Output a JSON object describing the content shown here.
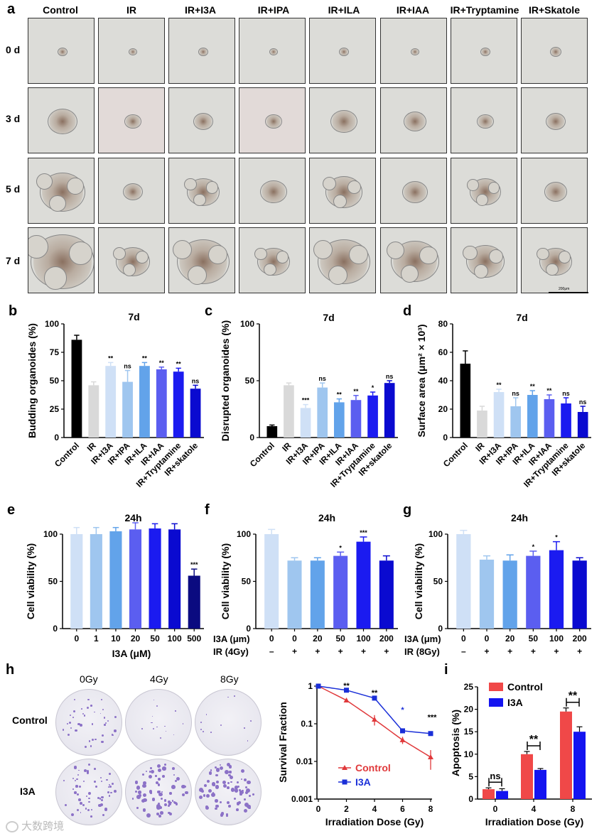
{
  "panel_letters": {
    "a": "a",
    "b": "b",
    "c": "c",
    "d": "d",
    "e": "e",
    "f": "f",
    "g": "g",
    "h": "h",
    "i": "i"
  },
  "panel_a": {
    "columns": [
      "Control",
      "IR",
      "IR+I3A",
      "IR+IPA",
      "IR+ILA",
      "IR+IAA",
      "IR+Tryptamine",
      "IR+Skatole"
    ],
    "rows": [
      "0 d",
      "3 d",
      "5 d",
      "7 d"
    ],
    "scale_bar": "200μm"
  },
  "panel_b": {
    "ylabel": "Budding organoides (%)"
  },
  "panel_c": {
    "ylabel": "Disrupted organoides (%)"
  },
  "panel_d": {
    "ylabel": "Surface area (μm² × 10³)"
  },
  "panel_e": {
    "ylabel": "Cell viability (%)"
  },
  "panel_f": {
    "ylabel": "Cell viability (%)",
    "row1_label": "I3A (μm)",
    "row2_label": "IR (4Gy)"
  },
  "panel_g": {
    "ylabel": "Cell viability (%)",
    "row1_label": "I3A (μm)",
    "row2_label": "IR (8Gy)"
  },
  "panel_h": {
    "doses": [
      "0Gy",
      "4Gy",
      "8Gy"
    ],
    "rows": [
      "Control",
      "I3A"
    ]
  },
  "watermark": "大数跨境",
  "chart_data": [
    {
      "id": "b",
      "type": "bar",
      "title": "7d",
      "ylabel": "Budding organoides (%)",
      "ylim": [
        0,
        100
      ],
      "yticks": [
        0,
        25,
        50,
        75,
        100
      ],
      "categories": [
        "Control",
        "IR",
        "IR+I3A",
        "IR+IPA",
        "IR+ILA",
        "IR+IAA",
        "IR+Tryptamine",
        "IR+skatole"
      ],
      "values": [
        86,
        46,
        63,
        49,
        63,
        60,
        58,
        43
      ],
      "errors": [
        4,
        3,
        3,
        10,
        3,
        2,
        3,
        3
      ],
      "sig": [
        "",
        "",
        "**",
        "ns",
        "**",
        "**",
        "**",
        "ns"
      ],
      "colors": [
        "#000000",
        "#d9d9d9",
        "#cfe0f6",
        "#9fc6ef",
        "#62a3ea",
        "#5b5ef0",
        "#1b1bf0",
        "#0a0ad0"
      ]
    },
    {
      "id": "c",
      "type": "bar",
      "title": "7d",
      "ylabel": "Disrupted organoides (%)",
      "ylim": [
        0,
        100
      ],
      "yticks": [
        0,
        50,
        100
      ],
      "categories": [
        "Control",
        "IR",
        "IR+I3A",
        "IR+IPA",
        "IR+ILA",
        "IR+IAA",
        "IR+Tryptamine",
        "IR+skatole"
      ],
      "values": [
        10,
        46,
        26,
        44,
        31,
        33,
        37,
        48
      ],
      "errors": [
        1,
        2,
        3,
        4,
        3,
        4,
        3,
        2
      ],
      "sig": [
        "",
        "",
        "***",
        "ns",
        "**",
        "**",
        "*",
        "ns"
      ],
      "colors": [
        "#000000",
        "#d9d9d9",
        "#cfe0f6",
        "#9fc6ef",
        "#62a3ea",
        "#5b5ef0",
        "#1b1bf0",
        "#0a0ad0"
      ]
    },
    {
      "id": "d",
      "type": "bar",
      "title": "7d",
      "ylabel": "Surface area (μm² × 10³)",
      "ylim": [
        0,
        80
      ],
      "yticks": [
        0,
        20,
        40,
        60,
        80
      ],
      "categories": [
        "Control",
        "IR",
        "IR+I3A",
        "IR+IPA",
        "IR+ILA",
        "IR+IAA",
        "IR+Tryptamine",
        "IR+skatole"
      ],
      "values": [
        52,
        19,
        32,
        22,
        30,
        27,
        24,
        18
      ],
      "errors": [
        9,
        3,
        2,
        6,
        3,
        3,
        4,
        4
      ],
      "sig": [
        "",
        "",
        "**",
        "ns",
        "**",
        "**",
        "ns",
        "ns"
      ],
      "colors": [
        "#000000",
        "#d9d9d9",
        "#cfe0f6",
        "#9fc6ef",
        "#62a3ea",
        "#5b5ef0",
        "#1b1bf0",
        "#0a0ad0"
      ]
    },
    {
      "id": "e",
      "type": "bar",
      "title": "24h",
      "ylabel": "Cell viability (%)",
      "xlabel": "I3A (μM)",
      "ylim": [
        0,
        100
      ],
      "yticks": [
        0,
        50,
        100
      ],
      "categories": [
        "0",
        "1",
        "10",
        "20",
        "50",
        "100",
        "500"
      ],
      "values": [
        100,
        100,
        103,
        105,
        106,
        105,
        56
      ],
      "errors": [
        7,
        7,
        4,
        7,
        5,
        6,
        7
      ],
      "sig": [
        "",
        "",
        "",
        "",
        "",
        "",
        "***"
      ],
      "colors": [
        "#cfe0f6",
        "#9fc6ef",
        "#62a3ea",
        "#5b5ef0",
        "#1b1bf0",
        "#0a0ad0",
        "#0b0b80"
      ]
    },
    {
      "id": "f",
      "type": "bar",
      "title": "24h",
      "ylabel": "Cell viability (%)",
      "ylim": [
        0,
        100
      ],
      "yticks": [
        0,
        50,
        100
      ],
      "categories": [
        "0",
        "0",
        "20",
        "50",
        "100",
        "200"
      ],
      "ir": [
        "–",
        "+",
        "+",
        "+",
        "+",
        "+"
      ],
      "values": [
        100,
        72,
        72,
        77,
        92,
        72
      ],
      "errors": [
        5,
        3,
        3,
        4,
        5,
        5
      ],
      "sig": [
        "",
        "",
        "",
        "*",
        "***",
        ""
      ],
      "colors": [
        "#cfe0f6",
        "#9fc6ef",
        "#62a3ea",
        "#5b5ef0",
        "#1b1bf0",
        "#0a0ad0"
      ]
    },
    {
      "id": "g",
      "type": "bar",
      "title": "24h",
      "ylabel": "Cell viability (%)",
      "ylim": [
        0,
        100
      ],
      "yticks": [
        0,
        50,
        100
      ],
      "categories": [
        "0",
        "0",
        "20",
        "50",
        "100",
        "200"
      ],
      "ir": [
        "–",
        "+",
        "+",
        "+",
        "+",
        "+"
      ],
      "values": [
        100,
        73,
        72,
        77,
        83,
        72
      ],
      "errors": [
        4,
        4,
        6,
        5,
        9,
        3
      ],
      "sig": [
        "",
        "",
        "",
        "*",
        "*",
        ""
      ],
      "colors": [
        "#cfe0f6",
        "#9fc6ef",
        "#62a3ea",
        "#5b5ef0",
        "#1b1bf0",
        "#0a0ad0"
      ]
    },
    {
      "id": "h",
      "type": "line",
      "xlabel": "Irradiation Dose (Gy)",
      "ylabel": "Survival Fraction",
      "yscale": "log",
      "ylim": [
        0.001,
        1
      ],
      "yticks": [
        "0.001",
        "0.01",
        "0.1",
        "1"
      ],
      "xticks": [
        0,
        2,
        4,
        6,
        8
      ],
      "series": [
        {
          "name": "Control",
          "color": "#e0393b",
          "x": [
            0,
            2,
            4,
            6,
            8
          ],
          "y": [
            1,
            0.42,
            0.13,
            0.037,
            0.013
          ],
          "err": [
            0.03,
            0.05,
            0.04,
            0.008,
            0.007
          ]
        },
        {
          "name": "I3A",
          "color": "#1a2fd8",
          "x": [
            0,
            2,
            4,
            6,
            8
          ],
          "y": [
            1,
            0.78,
            0.48,
            0.065,
            0.055
          ],
          "err": [
            0.03,
            0.04,
            0.04,
            0.005,
            0.006
          ]
        }
      ],
      "sig": [
        {
          "x": 2,
          "label": "**"
        },
        {
          "x": 4,
          "label": "**"
        },
        {
          "x": 6,
          "label": "*"
        },
        {
          "x": 8,
          "label": "***"
        }
      ]
    },
    {
      "id": "i",
      "type": "bar",
      "xlabel": "Irradiation Dose (Gy)",
      "ylabel": "Apoptosis (%)",
      "ylim": [
        0,
        25
      ],
      "yticks": [
        0,
        5,
        10,
        15,
        20,
        25
      ],
      "categories": [
        "0",
        "4",
        "8"
      ],
      "series": [
        {
          "name": "Control",
          "color": "#f04848",
          "values": [
            2.2,
            10,
            19.5
          ],
          "errors": [
            0.3,
            0.6,
            0.8
          ]
        },
        {
          "name": "I3A",
          "color": "#1414f0",
          "values": [
            1.8,
            6.5,
            15
          ],
          "errors": [
            0.5,
            0.3,
            1.1
          ]
        }
      ],
      "sig": [
        "ns",
        "**",
        "**"
      ]
    }
  ]
}
